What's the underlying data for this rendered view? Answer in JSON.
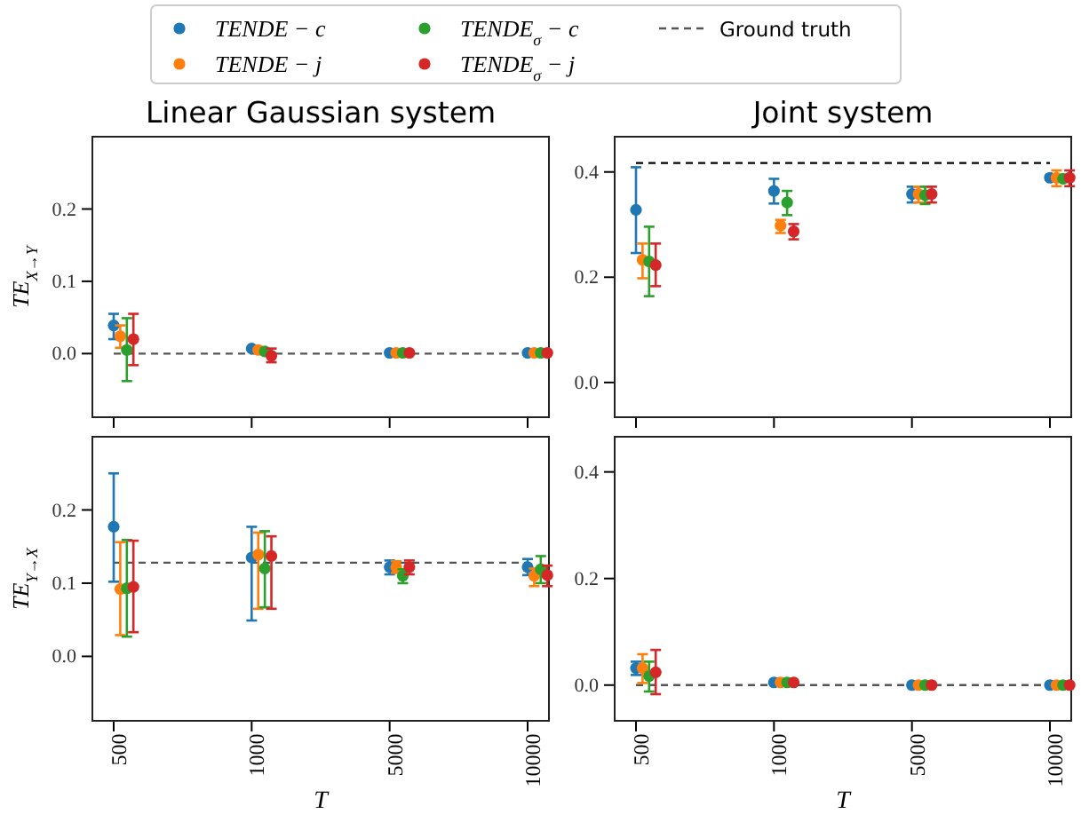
{
  "chart_data": [
    {
      "type": "scatter",
      "title": "Linear Gaussian system",
      "ylabel": "TE$_{X→Y}$",
      "categories": [
        "500",
        "1000",
        "5000",
        "10000"
      ],
      "ylim": [
        -0.088,
        0.3
      ],
      "yticks": [
        {
          "value": 0,
          "label": "0.0"
        },
        {
          "value": 0.1,
          "label": "0.1"
        },
        {
          "value": 0.2,
          "label": "0.2"
        }
      ],
      "tick_labels": "y",
      "marker": "circle",
      "legend": "top",
      "series": [
        {
          "name": "TENDE − c",
          "color": "#1f77b4",
          "values": [
            0.039,
            0.007,
            0.001,
            0.001
          ],
          "errors": [
            [
              0.02,
              0.055
            ],
            null,
            null,
            null
          ]
        },
        {
          "name": "TENDE − j",
          "color": "#ff7f0e",
          "values": [
            0.024,
            0.005,
            0.001,
            0.001
          ],
          "errors": [
            [
              0.008,
              0.039
            ],
            null,
            null,
            null
          ]
        },
        {
          "name": "TENDE$_{σ}$ − c",
          "color": "#2ca02c",
          "values": [
            0.005,
            0.003,
            0.001,
            0.001
          ],
          "errors": [
            [
              -0.038,
              0.049
            ],
            null,
            null,
            null
          ]
        },
        {
          "name": "TENDE$_{σ}$ − j",
          "color": "#d62728",
          "values": [
            0.02,
            -0.003,
            0.001,
            0.001
          ],
          "errors": [
            [
              -0.016,
              0.055
            ],
            [
              -0.012,
              0.007
            ],
            null,
            null
          ]
        },
        {
          "name": "Ground truth",
          "type": "line",
          "color": "#555555",
          "line_style": "dashed",
          "marker": "none",
          "values": [
            0,
            0,
            0,
            0
          ]
        }
      ]
    },
    {
      "type": "scatter",
      "title": "Joint system",
      "categories": [
        "500",
        "1000",
        "5000",
        "10000"
      ],
      "ylim": [
        -0.066,
        0.467
      ],
      "yticks": [
        {
          "value": 0,
          "label": "0.0"
        },
        {
          "value": 0.2,
          "label": "0.2"
        },
        {
          "value": 0.4,
          "label": "0.4"
        }
      ],
      "tick_labels": "y",
      "marker": "circle",
      "series": [
        {
          "color": "#1f77b4",
          "values": [
            0.328,
            0.364,
            0.358,
            0.389
          ],
          "errors": [
            [
              0.246,
              0.409
            ],
            [
              0.34,
              0.387
            ],
            [
              0.342,
              0.372
            ],
            [
              0.385,
              0.393
            ]
          ]
        },
        {
          "color": "#ff7f0e",
          "values": [
            0.233,
            0.298,
            0.358,
            0.389
          ],
          "errors": [
            [
              0.198,
              0.264
            ],
            [
              0.284,
              0.309
            ],
            [
              0.342,
              0.372
            ],
            [
              0.373,
              0.403
            ]
          ]
        },
        {
          "color": "#2ca02c",
          "values": [
            0.23,
            0.342,
            0.356,
            0.387
          ],
          "errors": [
            [
              0.164,
              0.296
            ],
            [
              0.318,
              0.364
            ],
            [
              0.339,
              0.372
            ],
            null
          ]
        },
        {
          "color": "#d62728",
          "values": [
            0.223,
            0.287,
            0.358,
            0.389
          ],
          "errors": [
            [
              0.183,
              0.264
            ],
            [
              0.272,
              0.301
            ],
            [
              0.342,
              0.372
            ],
            [
              0.373,
              0.403
            ]
          ]
        },
        {
          "type": "line",
          "color": "#000000",
          "line_style": "dashed",
          "marker": "none",
          "values": [
            0.417,
            0.417,
            0.417,
            0.417
          ]
        }
      ]
    },
    {
      "type": "scatter",
      "ylabel": "TE$_{Y→X}$",
      "xlabel": "T",
      "categories": [
        "500",
        "1000",
        "5000",
        "10000"
      ],
      "ylim": [
        -0.088,
        0.3
      ],
      "yticks": [
        {
          "value": 0,
          "label": "0.0"
        },
        {
          "value": 0.1,
          "label": "0.1"
        },
        {
          "value": 0.2,
          "label": "0.2"
        }
      ],
      "marker": "circle",
      "series": [
        {
          "color": "#1f77b4",
          "values": [
            0.177,
            0.135,
            0.122,
            0.122
          ],
          "errors": [
            [
              0.102,
              0.25
            ],
            [
              0.049,
              0.177
            ],
            [
              0.112,
              0.131
            ],
            [
              0.111,
              0.133
            ]
          ]
        },
        {
          "color": "#ff7f0e",
          "values": [
            0.092,
            0.139,
            0.122,
            0.11
          ],
          "errors": [
            [
              0.029,
              0.156
            ],
            [
              0.065,
              0.169
            ],
            [
              0.114,
              0.13
            ],
            [
              0.096,
              0.12
            ]
          ]
        },
        {
          "color": "#2ca02c",
          "values": [
            0.093,
            0.12,
            0.11,
            0.119
          ],
          "errors": [
            [
              0.027,
              0.159
            ],
            [
              0.067,
              0.171
            ],
            [
              0.1,
              0.119
            ],
            [
              0.1,
              0.137
            ]
          ]
        },
        {
          "color": "#d62728",
          "values": [
            0.095,
            0.137,
            0.122,
            0.111
          ],
          "errors": [
            [
              0.033,
              0.158
            ],
            [
              0.065,
              0.164
            ],
            [
              0.112,
              0.131
            ],
            [
              0.096,
              0.124
            ]
          ]
        },
        {
          "type": "line",
          "color": "#555555",
          "line_style": "dashed",
          "marker": "none",
          "values": [
            0.128,
            0.128,
            0.128,
            0.128
          ]
        }
      ]
    },
    {
      "type": "scatter",
      "xlabel": "T",
      "categories": [
        "500",
        "1000",
        "5000",
        "10000"
      ],
      "ylim": [
        -0.067,
        0.466
      ],
      "yticks": [
        {
          "value": 0,
          "label": "0.0"
        },
        {
          "value": 0.2,
          "label": "0.2"
        },
        {
          "value": 0.4,
          "label": "0.4"
        }
      ],
      "marker": "circle",
      "series": [
        {
          "color": "#1f77b4",
          "values": [
            0.032,
            0.005,
            0.0,
            0.0
          ],
          "errors": [
            [
              0.019,
              0.044
            ],
            null,
            null,
            null
          ]
        },
        {
          "color": "#ff7f0e",
          "values": [
            0.032,
            0.005,
            0.0,
            0.0
          ],
          "errors": [
            [
              0.004,
              0.058
            ],
            null,
            null,
            null
          ]
        },
        {
          "color": "#2ca02c",
          "values": [
            0.017,
            0.005,
            0.0,
            0.0
          ],
          "errors": [
            [
              -0.012,
              0.044
            ],
            null,
            null,
            null
          ]
        },
        {
          "color": "#d62728",
          "values": [
            0.024,
            0.005,
            0.0,
            0.0
          ],
          "errors": [
            [
              -0.017,
              0.066
            ],
            null,
            null,
            null
          ]
        },
        {
          "type": "line",
          "color": "#555555",
          "line_style": "dashed",
          "marker": "none",
          "values": [
            0,
            0,
            0,
            0
          ]
        }
      ]
    }
  ]
}
